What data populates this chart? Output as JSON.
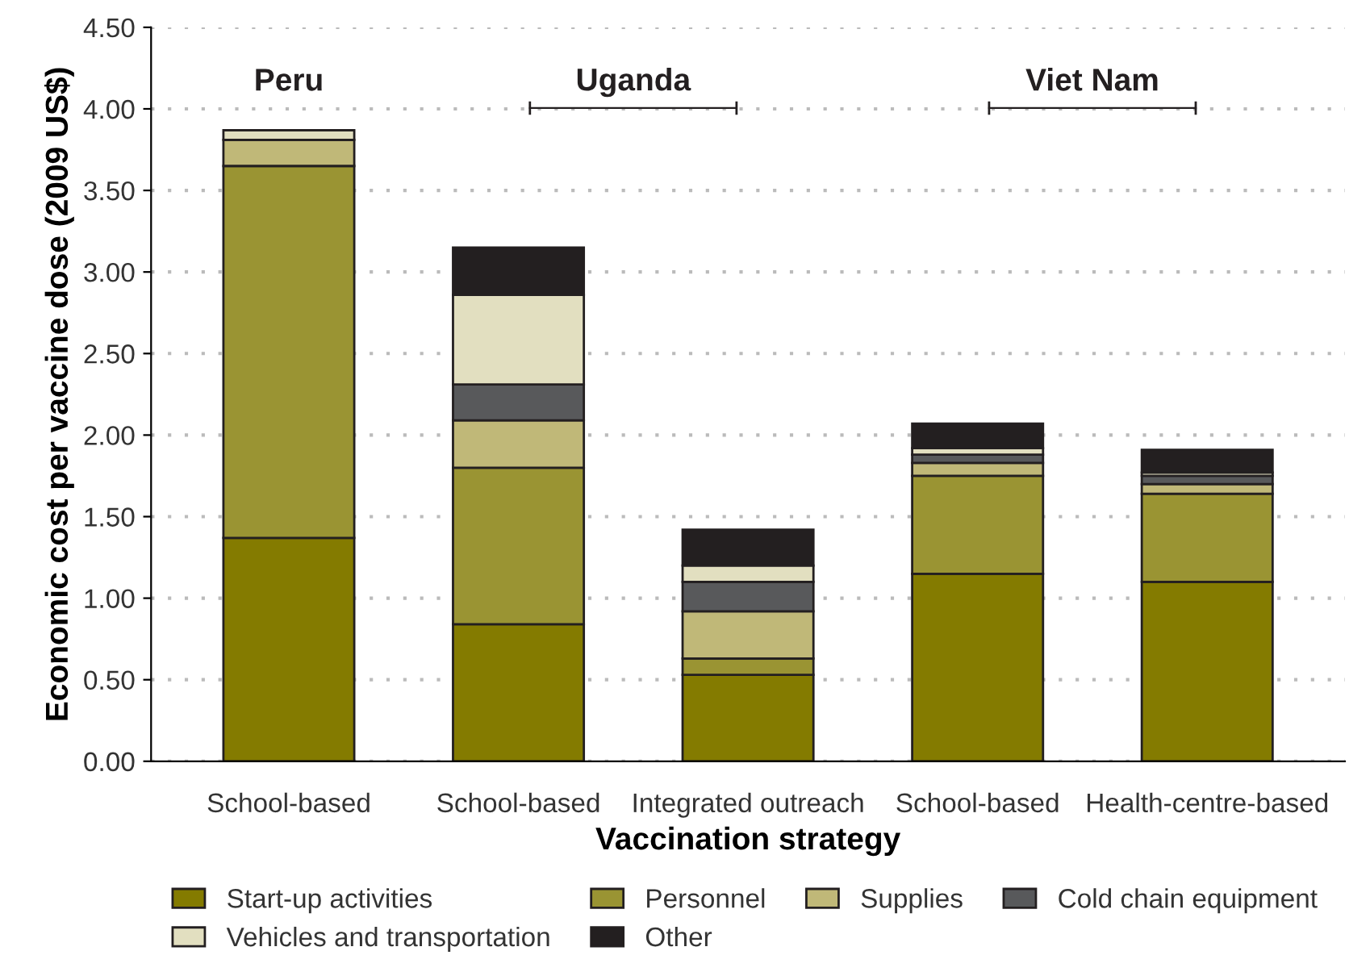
{
  "chart_data": {
    "type": "bar",
    "stacked": true,
    "xlabel": "Vaccination strategy",
    "ylabel": "Economic cost per vaccine dose (2009 US$)",
    "categories": [
      "School-based",
      "School-based",
      "Integrated outreach",
      "School-based",
      "Health-centre-based"
    ],
    "series": [
      {
        "name": "Start-up activities",
        "color": "#847b00",
        "values": [
          1.37,
          0.84,
          0.53,
          1.15,
          1.1
        ]
      },
      {
        "name": "Personnel",
        "color": "#9a9433",
        "values": [
          2.28,
          0.96,
          0.1,
          0.6,
          0.54
        ]
      },
      {
        "name": "Supplies",
        "color": "#c0b878",
        "values": [
          0.16,
          0.29,
          0.29,
          0.08,
          0.06
        ]
      },
      {
        "name": "Cold chain equipment",
        "color": "#58595b",
        "values": [
          0,
          0.22,
          0.18,
          0.05,
          0.05
        ]
      },
      {
        "name": "Vehicles and transportation",
        "color": "#e2dfc0",
        "values": [
          0.06,
          0.55,
          0.1,
          0.04,
          0.02
        ]
      },
      {
        "name": "Other",
        "color": "#231f20",
        "values": [
          0,
          0.29,
          0.22,
          0.15,
          0.14
        ]
      }
    ],
    "ylim": [
      0,
      4.5
    ],
    "yticks": [
      {
        "value": 0,
        "label": "0.00"
      },
      {
        "value": 0.5,
        "label": "0.50"
      },
      {
        "value": 1,
        "label": "1.00"
      },
      {
        "value": 1.5,
        "label": "1.50"
      },
      {
        "value": 2,
        "label": "2.00"
      },
      {
        "value": 2.5,
        "label": "2.50"
      },
      {
        "value": 3,
        "label": "3.00"
      },
      {
        "value": 3.5,
        "label": "3.50"
      },
      {
        "value": 4,
        "label": "4.00"
      },
      {
        "value": 4.5,
        "label": "4.50"
      }
    ],
    "grid": "y",
    "legend": "bottom",
    "annotations": [
      "Peru",
      "Uganda",
      "Viet Nam"
    ]
  }
}
